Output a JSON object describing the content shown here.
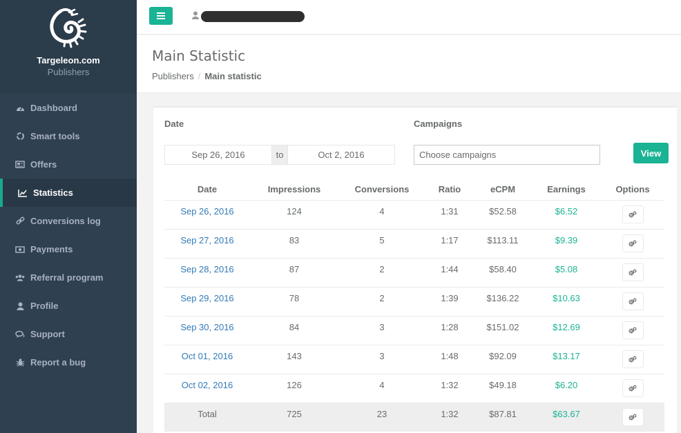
{
  "brand": {
    "name": "Targeleon.com",
    "subtitle": "Publishers"
  },
  "sidebar": {
    "items": [
      {
        "label": "Dashboard",
        "icon": "dashboard-icon",
        "active": false
      },
      {
        "label": "Smart tools",
        "icon": "recycle-icon",
        "active": false
      },
      {
        "label": "Offers",
        "icon": "newspaper-icon",
        "active": false
      },
      {
        "label": "Statistics",
        "icon": "line-chart-icon",
        "active": true
      },
      {
        "label": "Conversions log",
        "icon": "link-icon",
        "active": false
      },
      {
        "label": "Payments",
        "icon": "money-icon",
        "active": false
      },
      {
        "label": "Referral program",
        "icon": "users-icon",
        "active": false
      },
      {
        "label": "Profile",
        "icon": "user-icon",
        "active": false
      },
      {
        "label": "Support",
        "icon": "comments-icon",
        "active": false
      },
      {
        "label": "Report a bug",
        "icon": "bug-icon",
        "active": false
      }
    ]
  },
  "header": {
    "title": "Main Statistic",
    "breadcrumb": {
      "parent": "Publishers",
      "separator": "/",
      "current": "Main statistic"
    }
  },
  "filters": {
    "date_label": "Date",
    "date_from": "Sep 26, 2016",
    "to_label": "to",
    "date_to": "Oct 2, 2016",
    "campaigns_label": "Campaigns",
    "campaigns_placeholder": "Choose campaigns",
    "view_label": "View"
  },
  "table": {
    "columns": [
      "Date",
      "Impressions",
      "Conversions",
      "Ratio",
      "eCPM",
      "Earnings",
      "Options"
    ],
    "rows": [
      {
        "date": "Sep 26, 2016",
        "impressions": "124",
        "conversions": "4",
        "ratio": "1:31",
        "ecpm": "$52.58",
        "earnings": "$6.52"
      },
      {
        "date": "Sep 27, 2016",
        "impressions": "83",
        "conversions": "5",
        "ratio": "1:17",
        "ecpm": "$113.11",
        "earnings": "$9.39"
      },
      {
        "date": "Sep 28, 2016",
        "impressions": "87",
        "conversions": "2",
        "ratio": "1:44",
        "ecpm": "$58.40",
        "earnings": "$5.08"
      },
      {
        "date": "Sep 29, 2016",
        "impressions": "78",
        "conversions": "2",
        "ratio": "1:39",
        "ecpm": "$136.22",
        "earnings": "$10.63"
      },
      {
        "date": "Sep 30, 2016",
        "impressions": "84",
        "conversions": "3",
        "ratio": "1:28",
        "ecpm": "$151.02",
        "earnings": "$12.69"
      },
      {
        "date": "Oct 01, 2016",
        "impressions": "143",
        "conversions": "3",
        "ratio": "1:48",
        "ecpm": "$92.09",
        "earnings": "$13.17"
      },
      {
        "date": "Oct 02, 2016",
        "impressions": "126",
        "conversions": "4",
        "ratio": "1:32",
        "ecpm": "$49.18",
        "earnings": "$6.20"
      }
    ],
    "total": {
      "date": "Total",
      "impressions": "725",
      "conversions": "23",
      "ratio": "1:32",
      "ecpm": "$87.81",
      "earnings": "$63.67"
    }
  },
  "colors": {
    "accent": "#1ab394",
    "sidebar_bg": "#2f4050",
    "link": "#337ab7"
  }
}
